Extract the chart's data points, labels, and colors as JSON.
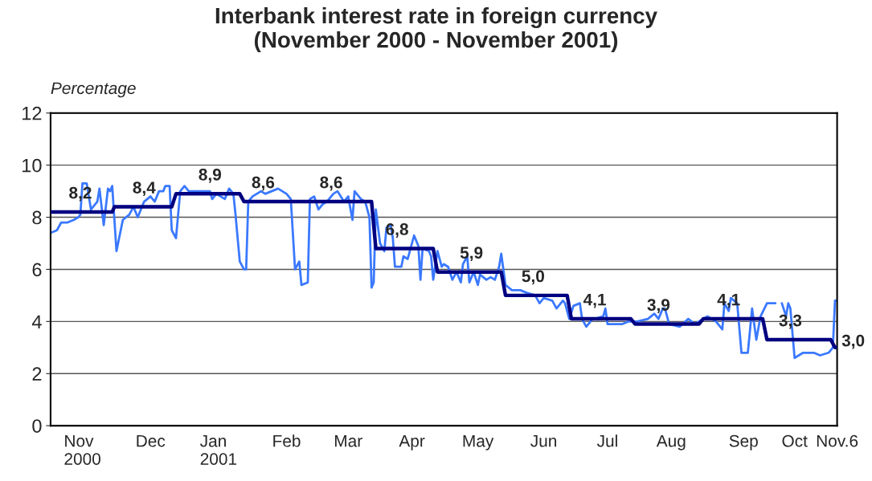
{
  "chart_data": {
    "type": "line",
    "title": "Interbank interest rate in foreign currency\n(November 2000 - November 2001)",
    "ylabel": "Percentage",
    "xlim": [
      "2000-11-01",
      "2001-11-06"
    ],
    "xticks": [
      {
        "value": "2000-11-16",
        "label": "Nov\n2000"
      },
      {
        "value": "2000-12-18",
        "label": "Dec"
      },
      {
        "value": "2001-01-19",
        "label": "Jan\n2001"
      },
      {
        "value": "2001-02-20",
        "label": "Feb"
      },
      {
        "value": "2001-03-21",
        "label": "Mar"
      },
      {
        "value": "2001-04-20",
        "label": "Apr"
      },
      {
        "value": "2001-05-21",
        "label": "May"
      },
      {
        "value": "2001-06-21",
        "label": "Jun"
      },
      {
        "value": "2001-07-21",
        "label": "Jul"
      },
      {
        "value": "2001-08-20",
        "label": "Aug"
      },
      {
        "value": "2001-09-23",
        "label": "Sep"
      },
      {
        "value": "2001-10-17",
        "label": "Oct"
      },
      {
        "value": "2001-11-06",
        "label": "Nov.6"
      }
    ],
    "ylim": [
      0,
      12
    ],
    "yticks": [
      0,
      2,
      4,
      6,
      8,
      10,
      12
    ],
    "grid": "y",
    "legend": false,
    "marker": "none",
    "line_style": "solid",
    "series": [
      {
        "color": "#3a78ff",
        "x": [
          "2000-11-01",
          "2000-11-04",
          "2000-11-06",
          "2000-11-09",
          "2000-11-12",
          "2000-11-14",
          "2000-11-15",
          "2000-11-16",
          "2000-11-18",
          "2000-11-20",
          "2000-11-23",
          "2000-11-24",
          "2000-11-26",
          "2000-11-28",
          "2000-11-29",
          "2000-11-30",
          "2000-12-02",
          "2000-12-03",
          "2000-12-05",
          "2000-12-08",
          "2000-12-10",
          "2000-12-12",
          "2000-12-15",
          "2000-12-18",
          "2000-12-20",
          "2000-12-22",
          "2000-12-24",
          "2000-12-25",
          "2000-12-27",
          "2000-12-28",
          "2000-12-30",
          "2001-01-01",
          "2001-01-03",
          "2001-01-05",
          "2001-01-10",
          "2001-01-15",
          "2001-01-16",
          "2001-01-18",
          "2001-01-22",
          "2001-01-24",
          "2001-01-26",
          "2001-01-27",
          "2001-01-29",
          "2001-01-31",
          "2001-02-01",
          "2001-02-02",
          "2001-02-04",
          "2001-02-08",
          "2001-02-10",
          "2001-02-13",
          "2001-02-16",
          "2001-02-20",
          "2001-02-22",
          "2001-02-24",
          "2001-02-26",
          "2001-02-27",
          "2001-03-02",
          "2001-03-03",
          "2001-03-05",
          "2001-03-07",
          "2001-03-09",
          "2001-03-11",
          "2001-03-14",
          "2001-03-16",
          "2001-03-19",
          "2001-03-21",
          "2001-03-23",
          "2001-03-24",
          "2001-03-27",
          "2001-03-29",
          "2001-03-31",
          "2001-04-01",
          "2001-04-02",
          "2001-04-03",
          "2001-04-05",
          "2001-04-07",
          "2001-04-08",
          "2001-04-10",
          "2001-04-11",
          "2001-04-12",
          "2001-04-15",
          "2001-04-16",
          "2001-04-18",
          "2001-04-20",
          "2001-04-21",
          "2001-04-23",
          "2001-04-24",
          "2001-04-25",
          "2001-04-28",
          "2001-04-29",
          "2001-04-30",
          "2001-05-02",
          "2001-05-04",
          "2001-05-05",
          "2001-05-07",
          "2001-05-09",
          "2001-05-11",
          "2001-05-12",
          "2001-05-13",
          "2001-05-14",
          "2001-05-16",
          "2001-05-17",
          "2001-05-19",
          "2001-05-21",
          "2001-05-22",
          "2001-05-25",
          "2001-05-27",
          "2001-05-29",
          "2001-05-31",
          "2001-06-01",
          "2001-06-03",
          "2001-06-06",
          "2001-06-10",
          "2001-06-13",
          "2001-06-17",
          "2001-06-19",
          "2001-06-21",
          "2001-06-25",
          "2001-06-27",
          "2001-06-30",
          "2001-07-01",
          "2001-07-03",
          "2001-07-05",
          "2001-07-08",
          "2001-07-09",
          "2001-07-11",
          "2001-07-14",
          "2001-07-15",
          "2001-07-19",
          "2001-07-20",
          "2001-07-21",
          "2001-07-28",
          "2001-07-31",
          "2001-08-04",
          "2001-08-09",
          "2001-08-12",
          "2001-08-14",
          "2001-08-16",
          "2001-08-17",
          "2001-08-19",
          "2001-08-24",
          "2001-08-28",
          "2001-08-31",
          "2001-09-02",
          "2001-09-06",
          "2001-09-10",
          "2001-09-13",
          "2001-09-14",
          "2001-09-16",
          "2001-09-17",
          "2001-09-20",
          "2001-09-22",
          "2001-09-25",
          "2001-09-27",
          "2001-09-29",
          "2001-10-01",
          "2001-10-04",
          "2001-10-08",
          "2001-10-09",
          "2001-10-11",
          "2001-10-13",
          "2001-10-14",
          "2001-10-15",
          "2001-10-17",
          "2001-10-21",
          "2001-10-26",
          "2001-10-29",
          "2001-11-02",
          "2001-11-04",
          "2001-11-05",
          "2001-11-06"
        ],
        "values": [
          7.4,
          7.5,
          7.8,
          7.8,
          7.9,
          8.0,
          8.1,
          9.3,
          9.3,
          8.3,
          8.6,
          9.1,
          7.7,
          9.1,
          9.0,
          9.2,
          6.7,
          7.1,
          7.9,
          8.1,
          8.4,
          8.0,
          8.6,
          8.8,
          8.6,
          9.0,
          9.0,
          9.2,
          9.2,
          7.5,
          7.2,
          9.0,
          9.2,
          9.0,
          9.0,
          9.0,
          8.7,
          8.9,
          8.7,
          9.1,
          8.9,
          8.1,
          6.3,
          6.0,
          6.0,
          8.6,
          8.8,
          9.0,
          8.9,
          9.0,
          9.1,
          8.9,
          8.7,
          6.0,
          6.3,
          5.4,
          5.5,
          8.7,
          8.8,
          8.3,
          8.5,
          8.6,
          8.9,
          9.0,
          8.6,
          8.8,
          7.9,
          9.0,
          8.7,
          8.6,
          8.0,
          5.3,
          5.5,
          8.3,
          7.0,
          6.7,
          7.6,
          7.7,
          7.2,
          6.1,
          6.1,
          6.5,
          6.4,
          7.0,
          7.3,
          6.9,
          5.6,
          6.8,
          6.7,
          6.5,
          5.6,
          6.7,
          6.1,
          6.2,
          6.1,
          5.6,
          5.9,
          5.7,
          5.5,
          6.2,
          6.5,
          5.5,
          5.9,
          5.4,
          5.8,
          5.6,
          5.7,
          5.6,
          6.1,
          6.6,
          5.4,
          5.2,
          5.2,
          5.1,
          5.0,
          4.7,
          4.9,
          4.8,
          4.5,
          4.8,
          4.7,
          4.1,
          4.6,
          4.7,
          4.1,
          3.8,
          4.1,
          4.1,
          4.2,
          4.5,
          3.9,
          3.9,
          4.0,
          4.0,
          4.1,
          4.3,
          4.1,
          4.5,
          4.5,
          3.9,
          3.8,
          4.1,
          3.9,
          4.0,
          4.2,
          4.0,
          3.7,
          4.7,
          4.4,
          4.9,
          4.7,
          2.8,
          2.8,
          4.5,
          3.3,
          4.2,
          4.7,
          4.7,
          null,
          4.7,
          4.2,
          4.7,
          4.5,
          2.6,
          2.8,
          2.8,
          2.7,
          2.8,
          3.0,
          4.8,
          4.8
        ]
      },
      {
        "color": "#000080",
        "x": [
          "2000-11-01",
          "2000-11-30",
          "2000-12-01",
          "2000-12-28",
          "2000-12-30",
          "2001-01-29",
          "2001-01-31",
          "2001-04-01",
          "2001-04-03",
          "2001-04-30",
          "2001-05-02",
          "2001-06-01",
          "2001-06-03",
          "2001-07-02",
          "2001-07-04",
          "2001-08-01",
          "2001-08-03",
          "2001-09-02",
          "2001-09-04",
          "2001-10-02",
          "2001-10-04",
          "2001-11-03",
          "2001-11-05",
          "2001-11-06"
        ],
        "values": [
          8.2,
          8.2,
          8.4,
          8.4,
          8.9,
          8.9,
          8.6,
          8.6,
          6.8,
          6.8,
          5.9,
          5.9,
          5.0,
          5.0,
          4.1,
          4.1,
          3.9,
          3.9,
          4.1,
          4.1,
          3.3,
          3.3,
          3.0,
          3.0
        ]
      }
    ],
    "annotations": [
      {
        "text": "8,2",
        "x": "2000-11-15",
        "y": 8.2
      },
      {
        "text": "8,4",
        "x": "2000-12-15",
        "y": 8.4
      },
      {
        "text": "8,9",
        "x": "2001-01-15",
        "y": 8.9
      },
      {
        "text": "8,6",
        "x": "2001-02-09",
        "y": 8.6
      },
      {
        "text": "8,6",
        "x": "2001-03-13",
        "y": 8.6
      },
      {
        "text": "6,8",
        "x": "2001-04-13",
        "y": 6.8
      },
      {
        "text": "5,9",
        "x": "2001-05-18",
        "y": 5.9
      },
      {
        "text": "5,0",
        "x": "2001-06-16",
        "y": 5.0
      },
      {
        "text": "4,1",
        "x": "2001-07-15",
        "y": 4.1
      },
      {
        "text": "3,9",
        "x": "2001-08-14",
        "y": 3.9
      },
      {
        "text": "4,1",
        "x": "2001-09-16",
        "y": 4.1
      },
      {
        "text": "3,3",
        "x": "2001-10-15",
        "y": 3.3
      },
      {
        "text": "3,0",
        "x": "2001-11-06",
        "y": 3.0
      }
    ]
  }
}
